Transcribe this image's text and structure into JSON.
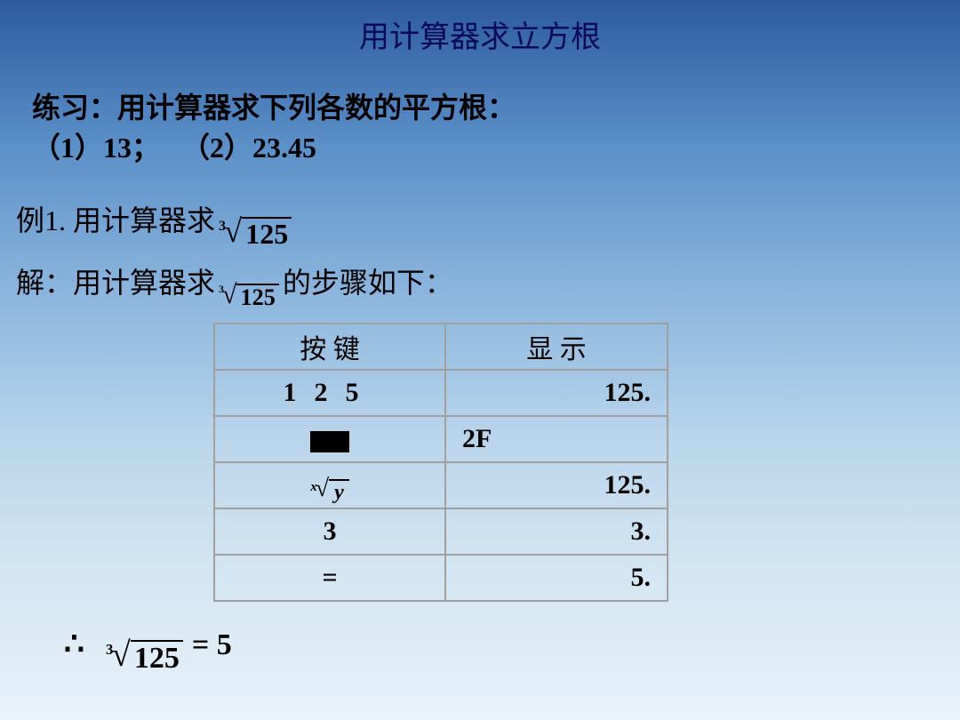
{
  "title": "用计算器求立方根",
  "practice": {
    "line1_prefix": "练习：用计算器求下列各数的平方根：",
    "item1_label": "（1）",
    "item1_val": "13；",
    "item2_label": "（2）",
    "item2_val": "23.45"
  },
  "example": {
    "prefix": "例1. 用计算器求",
    "root_index": "3",
    "root_value": "125"
  },
  "solution": {
    "prefix": "解：用计算器求",
    "root_index": "3",
    "root_value": "125",
    "suffix": "的步骤如下："
  },
  "table": {
    "header_keys": "按 键",
    "header_display": "显 示",
    "rows": [
      {
        "key_type": "digits",
        "key_text": "1  2  5",
        "disp": "125.",
        "disp_align": "right"
      },
      {
        "key_type": "black",
        "disp": "2F",
        "disp_align": "left"
      },
      {
        "key_type": "xroot",
        "x": "x",
        "y": "y",
        "disp": "125.",
        "disp_align": "right"
      },
      {
        "key_type": "text",
        "key_text": "3",
        "disp": "3.",
        "disp_align": "right"
      },
      {
        "key_type": "text",
        "key_text": "=",
        "disp": "5.",
        "disp_align": "right"
      }
    ]
  },
  "conclusion": {
    "therefore": "∴",
    "root_index": "3",
    "root_value": "125",
    "equals": "= 5"
  },
  "colors": {
    "border": "#a0a0a0",
    "title": "#0a0a5a"
  }
}
